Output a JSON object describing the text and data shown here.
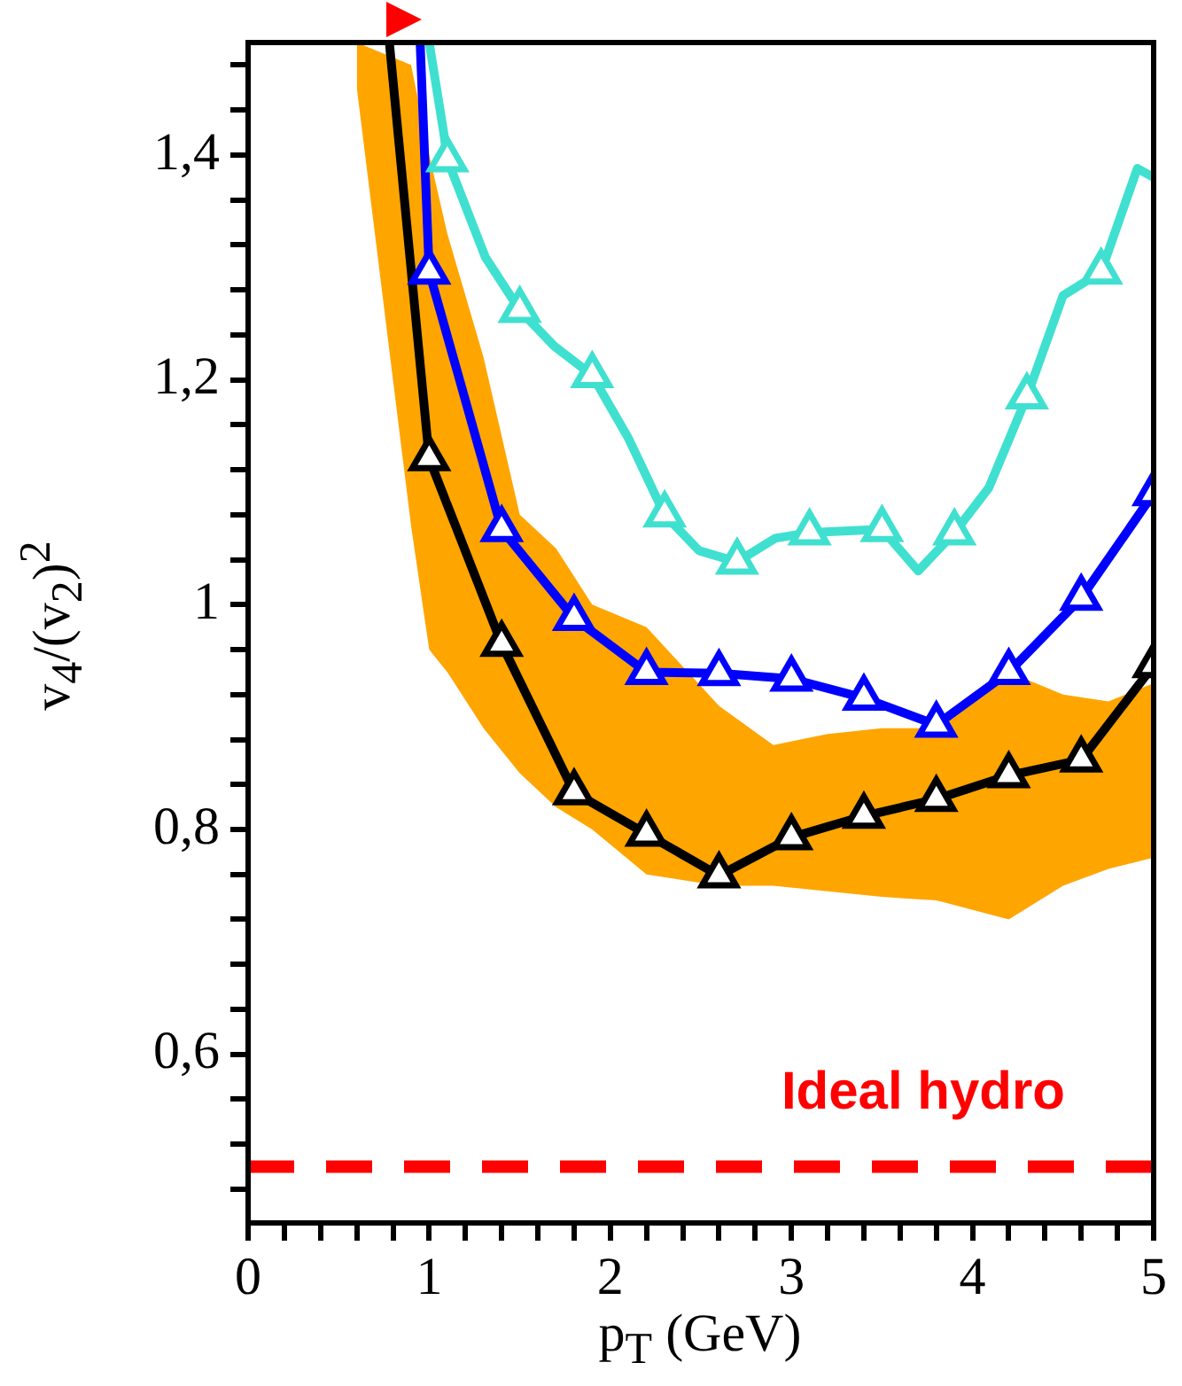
{
  "chart_data": {
    "type": "line",
    "xlabel": "p$_{T}$ (GeV)",
    "ylabel": "v$_{4}$/(v$_{2}$)$^{2}$",
    "xlim": [
      0,
      5
    ],
    "ylim": [
      0.45,
      1.5
    ],
    "xticks": [
      0,
      {
        "value": 0.2,
        "label": null
      },
      {
        "value": 0.4,
        "label": null
      },
      {
        "value": 0.6,
        "label": null
      },
      {
        "value": 0.8,
        "label": null
      },
      1,
      {
        "value": 1.2,
        "label": null
      },
      {
        "value": 1.4,
        "label": null
      },
      {
        "value": 1.6,
        "label": null
      },
      {
        "value": 1.8,
        "label": null
      },
      2,
      {
        "value": 2.2,
        "label": null
      },
      {
        "value": 2.4,
        "label": null
      },
      {
        "value": 2.6,
        "label": null
      },
      {
        "value": 2.8,
        "label": null
      },
      3,
      {
        "value": 3.2,
        "label": null
      },
      {
        "value": 3.4,
        "label": null
      },
      {
        "value": 3.6,
        "label": null
      },
      {
        "value": 3.8,
        "label": null
      },
      4,
      {
        "value": 4.2,
        "label": null
      },
      {
        "value": 4.4,
        "label": null
      },
      {
        "value": 4.6,
        "label": null
      },
      {
        "value": 4.8,
        "label": null
      },
      5
    ],
    "yticks": [
      {
        "value": 0.48,
        "label": null
      },
      {
        "value": 0.52,
        "label": null
      },
      {
        "value": 0.56,
        "label": null
      },
      {
        "value": 0.6,
        "label": "0,6"
      },
      {
        "value": 0.64,
        "label": null
      },
      {
        "value": 0.68,
        "label": null
      },
      {
        "value": 0.72,
        "label": null
      },
      {
        "value": 0.76,
        "label": null
      },
      {
        "value": 0.8,
        "label": "0,8"
      },
      {
        "value": 0.84,
        "label": null
      },
      {
        "value": 0.88,
        "label": null
      },
      {
        "value": 0.92,
        "label": null
      },
      {
        "value": 0.96,
        "label": null
      },
      1,
      {
        "value": 1.04,
        "label": null
      },
      {
        "value": 1.08,
        "label": null
      },
      {
        "value": 1.12,
        "label": null
      },
      {
        "value": 1.16,
        "label": null
      },
      {
        "value": 1.2,
        "label": "1,2"
      },
      {
        "value": 1.24,
        "label": null
      },
      {
        "value": 1.28,
        "label": null
      },
      {
        "value": 1.32,
        "label": null
      },
      {
        "value": 1.36,
        "label": null
      },
      {
        "value": 1.4,
        "label": "1,4"
      },
      {
        "value": 1.44,
        "label": null
      },
      {
        "value": 1.48,
        "label": null
      }
    ],
    "grid": false,
    "series": [
      {
        "type": "area",
        "color": "#ffa500",
        "values": [
          null,
          null,
          null,
          null,
          null,
          null,
          null,
          null,
          null,
          null,
          null,
          null,
          null,
          null,
          null,
          null,
          null,
          null
        ],
        "x": [
          0.6,
          0.9,
          1.0,
          1.1,
          1.3,
          1.5,
          1.7,
          1.9,
          2.2,
          2.6,
          2.9,
          3.2,
          3.5,
          3.8,
          4.2,
          4.5,
          4.75,
          5.0
        ],
        "lower": [
          1.46,
          1.07,
          0.96,
          0.94,
          0.89,
          0.85,
          0.82,
          0.8,
          0.76,
          0.75,
          0.75,
          0.745,
          0.74,
          0.737,
          0.72,
          0.75,
          0.765,
          0.775
        ],
        "upper": [
          1.5,
          1.48,
          1.4,
          1.33,
          1.22,
          1.08,
          1.05,
          1.0,
          0.98,
          0.91,
          0.875,
          0.885,
          0.89,
          0.89,
          0.94,
          0.92,
          0.914,
          0.93
        ]
      },
      {
        "type": "line",
        "color": "#40e0d0",
        "marker": "none",
        "x": [
          1.0,
          1.08,
          1.1,
          1.31,
          1.5,
          1.69,
          1.9,
          2.1,
          2.3,
          2.49,
          2.7,
          2.91,
          3.1,
          3.5,
          3.7,
          3.9,
          4.09,
          4.3,
          4.5,
          4.71,
          4.91,
          5.0
        ],
        "values": [
          1.5,
          1.42,
          1.396,
          1.309,
          1.262,
          1.23,
          1.204,
          1.148,
          1.08,
          1.048,
          1.038,
          1.059,
          1.064,
          1.067,
          1.03,
          1.064,
          1.104,
          1.185,
          1.275,
          1.296,
          1.388,
          1.38
        ]
      },
      {
        "type": "line",
        "color": "#0000ff",
        "marker": "none",
        "x": [
          0.95,
          1.0,
          1.4,
          1.8,
          2.2,
          2.6,
          3.0,
          3.4,
          3.8,
          4.2,
          4.6,
          5.0
        ],
        "values": [
          1.5,
          1.296,
          1.067,
          0.988,
          0.94,
          0.939,
          0.934,
          0.917,
          0.893,
          0.94,
          1.006,
          1.099
        ]
      },
      {
        "type": "line",
        "color": "#000000",
        "marker": "none",
        "x": [
          0.78,
          1.0,
          1.4,
          1.8,
          2.2,
          2.6,
          3.0,
          3.4,
          3.8,
          4.2,
          4.6,
          5.0
        ],
        "values": [
          1.5,
          1.13,
          0.965,
          0.833,
          0.796,
          0.759,
          0.793,
          0.812,
          0.827,
          0.848,
          0.862,
          0.946
        ]
      },
      {
        "type": "scatter",
        "color": "#40e0d0",
        "marker": "triangle",
        "x": [
          1.1,
          1.5,
          1.9,
          2.3,
          2.7,
          3.1,
          3.5,
          3.9,
          4.3,
          4.71
        ],
        "values": [
          1.396,
          1.262,
          1.204,
          1.08,
          1.038,
          1.064,
          1.067,
          1.064,
          1.185,
          1.296
        ]
      },
      {
        "type": "scatter",
        "color": "#0000ff",
        "marker": "triangle",
        "x": [
          1.0,
          1.4,
          1.8,
          2.2,
          2.6,
          3.0,
          3.4,
          3.8,
          4.2,
          4.6,
          5.0
        ],
        "values": [
          1.296,
          1.067,
          0.988,
          0.94,
          0.939,
          0.934,
          0.917,
          0.893,
          0.94,
          1.006,
          1.099
        ]
      },
      {
        "type": "scatter",
        "color": "#000000",
        "marker": "triangle",
        "x": [
          1.0,
          1.4,
          1.8,
          2.2,
          2.6,
          3.0,
          3.4,
          3.8,
          4.2,
          4.6,
          5.0
        ],
        "values": [
          1.13,
          0.965,
          0.833,
          0.796,
          0.759,
          0.793,
          0.812,
          0.827,
          0.848,
          0.862,
          0.946
        ]
      }
    ],
    "ref_lines": [
      {
        "axis": "y",
        "value": 0.5,
        "label": "Ideal hydro",
        "color": "#ff0000",
        "line_style": "dashed"
      }
    ]
  }
}
